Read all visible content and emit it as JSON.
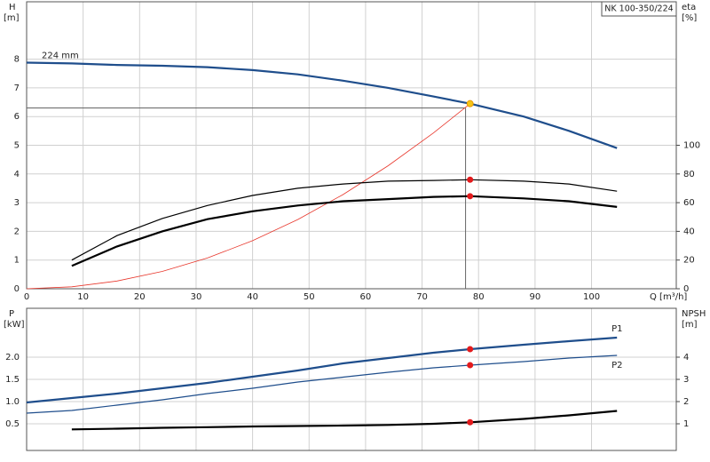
{
  "chart_data": [
    {
      "type": "line",
      "badge": "NK 100-350/224",
      "ylabel": "H",
      "yunit": "[m]",
      "y2label": "eta",
      "y2unit": "[%]",
      "xlabel": "Q [m³/h]",
      "xlim": [
        0,
        115
      ],
      "xticks": [
        0,
        10,
        20,
        30,
        40,
        50,
        60,
        70,
        80,
        90,
        100
      ],
      "ylim": [
        0,
        10
      ],
      "yticks": [
        0,
        1,
        2,
        3,
        4,
        5,
        6,
        7,
        8
      ],
      "y2lim": [
        0,
        200
      ],
      "y2ticks": [
        0,
        20,
        40,
        60,
        80,
        100
      ],
      "grid": true,
      "x": [
        0,
        8,
        16,
        24,
        32,
        40,
        48,
        56,
        64,
        72,
        78.5,
        88,
        96,
        104.5
      ],
      "series": [
        {
          "name": "224 mm",
          "color": "#1f4e8c",
          "width": 2.2,
          "values": [
            7.88,
            7.85,
            7.8,
            7.77,
            7.72,
            7.62,
            7.47,
            7.25,
            7.0,
            6.7,
            6.45,
            6.0,
            5.5,
            4.9
          ]
        },
        {
          "color": "#e8372c",
          "width": 0.8,
          "values": [
            0,
            0.067,
            0.268,
            0.603,
            1.072,
            1.675,
            2.412,
            3.283,
            4.287,
            5.426,
            6.45,
            null,
            null,
            null
          ]
        },
        {
          "color": "#000000",
          "width": 1.2,
          "axis": "y2",
          "values": [
            null,
            20,
            37,
            49,
            58,
            65,
            70,
            73,
            75,
            75.5,
            76,
            75,
            73,
            68
          ]
        },
        {
          "color": "#000000",
          "width": 2.2,
          "axis": "y2",
          "values": [
            null,
            16,
            29.5,
            40,
            48.5,
            54,
            58,
            61,
            62.5,
            64,
            64.5,
            63,
            61,
            57
          ]
        }
      ],
      "guide": {
        "x": 77.7,
        "y": 6.3
      },
      "markers": [
        {
          "x": 78.5,
          "y": 6.45,
          "color": "#f5c518"
        },
        {
          "x": 78.5,
          "y": 76,
          "axis": "y2",
          "color": "#e31a1c"
        },
        {
          "x": 78.5,
          "y": 64.5,
          "axis": "y2",
          "color": "#e31a1c"
        }
      ]
    },
    {
      "type": "line",
      "ylabel": "P",
      "yunit": "[kW]",
      "y2label": "NPSH",
      "y2unit": "[m]",
      "xlim": [
        0,
        115
      ],
      "xticks": [
        0,
        10,
        20,
        30,
        40,
        50,
        60,
        70,
        80,
        90,
        100
      ],
      "ylim": [
        -0.1,
        3.1
      ],
      "yticks": [
        {
          "value": 0.5,
          "label": "0.5"
        },
        {
          "value": 1,
          "label": "1.0"
        },
        {
          "value": 1.5,
          "label": "1.5"
        },
        {
          "value": 2,
          "label": "2.0"
        }
      ],
      "y2lim": [
        -0.2,
        6.2
      ],
      "y2ticks": [
        1,
        2,
        3,
        4
      ],
      "grid": true,
      "x": [
        0,
        8,
        16,
        24,
        32,
        40,
        48,
        56,
        64,
        72,
        78.5,
        88,
        96,
        104.5
      ],
      "series": [
        {
          "name": "P1",
          "color": "#1f4e8c",
          "width": 2.2,
          "values": [
            0.98,
            1.08,
            1.18,
            1.3,
            1.42,
            1.56,
            1.7,
            1.86,
            1.98,
            2.1,
            2.18,
            2.28,
            2.36,
            2.44
          ]
        },
        {
          "name": "P2",
          "color": "#1f4e8c",
          "width": 1.2,
          "values": [
            0.74,
            0.8,
            0.92,
            1.04,
            1.18,
            1.3,
            1.44,
            1.55,
            1.66,
            1.76,
            1.82,
            1.9,
            1.98,
            2.04
          ]
        },
        {
          "color": "#000000",
          "width": 2.2,
          "axis": "y2",
          "values": [
            null,
            0.75,
            0.78,
            0.82,
            0.85,
            0.88,
            0.9,
            0.92,
            0.95,
            1.0,
            1.07,
            1.22,
            1.38,
            1.58
          ]
        }
      ],
      "markers": [
        {
          "x": 78.5,
          "y": 2.18,
          "color": "#e31a1c"
        },
        {
          "x": 78.5,
          "y": 1.82,
          "color": "#e31a1c"
        },
        {
          "x": 78.5,
          "y": 1.07,
          "axis": "y2",
          "color": "#e31a1c"
        }
      ]
    }
  ]
}
